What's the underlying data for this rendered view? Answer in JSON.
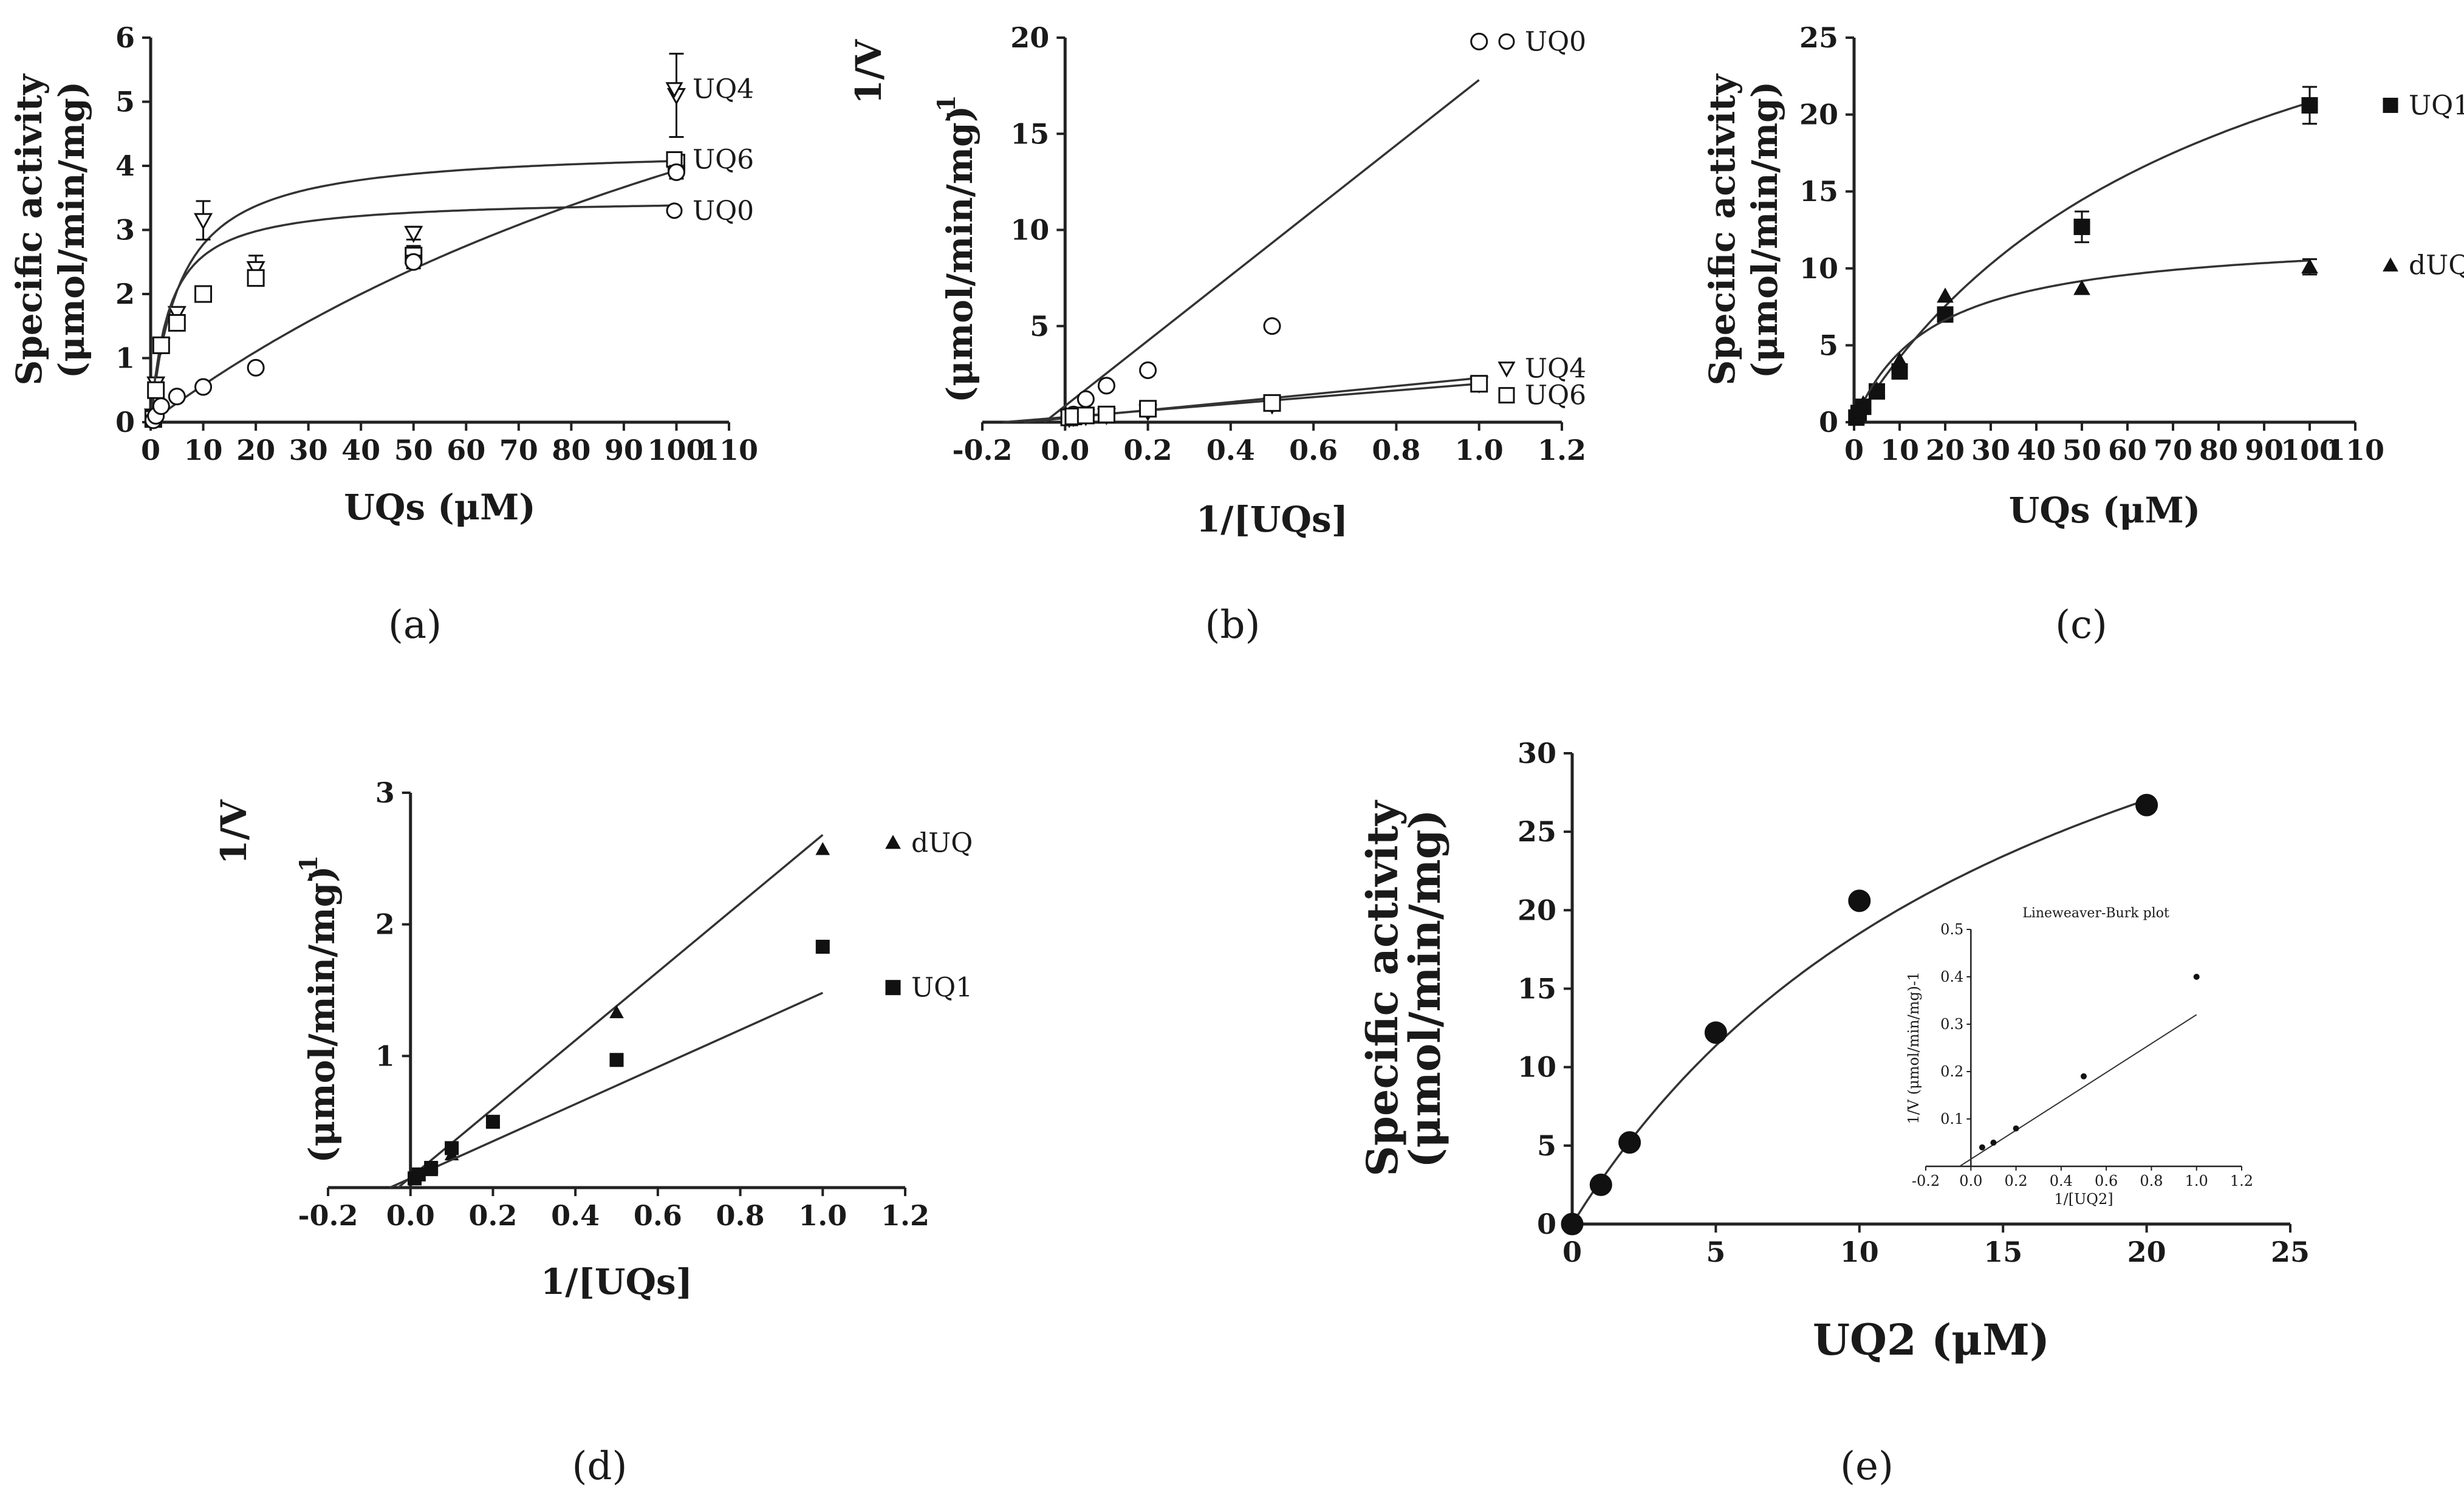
{
  "chart_data": [
    {
      "id": "a",
      "type": "scatter",
      "panel_label": "(a)",
      "xlabel": "UQs (μM)",
      "ylabel": "Specific activity (μmol/min/mg)",
      "ylabel_lines": [
        "Specific activity",
        "(μmol/min/mg)"
      ],
      "xlim": [
        0,
        110
      ],
      "ylim": [
        0,
        6
      ],
      "xticks": [
        0,
        10,
        20,
        30,
        40,
        50,
        60,
        70,
        80,
        90,
        100,
        110
      ],
      "yticks": [
        0,
        1,
        2,
        3,
        4,
        5,
        6
      ],
      "series": [
        {
          "name": "UQ4",
          "label": "UQ4",
          "marker": "triangle-down-open",
          "x": [
            0.5,
            1,
            2,
            5,
            10,
            20,
            50,
            100
          ],
          "y": [
            0.1,
            0.6,
            1.2,
            1.7,
            3.15,
            2.4,
            2.95,
            5.1
          ],
          "err": [
            0,
            0,
            0,
            0,
            0.3,
            0.2,
            0.1,
            0.65
          ],
          "fit": {
            "kind": "mm",
            "vmax": 4.3,
            "km": 5.5
          }
        },
        {
          "name": "UQ6",
          "label": "UQ6",
          "marker": "square-open",
          "x": [
            0.5,
            1,
            2,
            5,
            10,
            20,
            50,
            100
          ],
          "y": [
            0.05,
            0.5,
            1.2,
            1.55,
            2.0,
            2.25,
            2.6,
            4.05
          ],
          "err": [
            0,
            0,
            0,
            0,
            0,
            0.1,
            0.15,
            0.12
          ],
          "fit": {
            "kind": "mm",
            "vmax": 3.5,
            "km": 3.5
          }
        },
        {
          "name": "UQ0",
          "label": "UQ0",
          "marker": "circle-open",
          "x": [
            0.5,
            1,
            2,
            5,
            10,
            20,
            50,
            100
          ],
          "y": [
            0.03,
            0.1,
            0.25,
            0.4,
            0.55,
            0.85,
            2.5,
            3.9
          ],
          "err": [
            0,
            0,
            0,
            0,
            0,
            0,
            0.1,
            0.1
          ],
          "fit": {
            "kind": "mm",
            "vmax": 11,
            "km": 180
          }
        }
      ]
    },
    {
      "id": "b",
      "type": "scatter",
      "panel_label": "(b)",
      "xlabel": "1/[UQs]",
      "ylabel": "1/V (μmol/min/mg)-1",
      "ylabel_lines": [
        "1/V",
        "(μmol/min/mg)",
        "-1"
      ],
      "xlim": [
        -0.2,
        1.2
      ],
      "ylim": [
        0,
        20
      ],
      "xticks": [
        -0.2,
        0.0,
        0.2,
        0.4,
        0.6,
        0.8,
        1.0,
        1.2
      ],
      "yticks": [
        5,
        10,
        15,
        20
      ],
      "series": [
        {
          "name": "UQ0",
          "label": "UQ0",
          "marker": "circle-open",
          "x": [
            0.01,
            0.02,
            0.05,
            0.1,
            0.2,
            0.5,
            1.0
          ],
          "y": [
            0.26,
            0.4,
            1.2,
            1.9,
            2.7,
            5.0,
            19.8
          ],
          "fit": {
            "kind": "line",
            "slope": 17.0,
            "intercept": 0.8,
            "x0": -0.05,
            "x1": 1.0
          }
        },
        {
          "name": "UQ4",
          "label": "UQ4",
          "marker": "triangle-down-open",
          "x": [
            0.01,
            0.02,
            0.05,
            0.1,
            0.2,
            0.5,
            1.0
          ],
          "y": [
            0.2,
            0.25,
            0.3,
            0.35,
            0.55,
            0.9,
            2.0
          ],
          "fit": {
            "kind": "line",
            "slope": 2.1,
            "intercept": 0.2,
            "x0": -0.1,
            "x1": 1.0
          }
        },
        {
          "name": "UQ6",
          "label": "UQ6",
          "marker": "square-open",
          "x": [
            0.01,
            0.02,
            0.05,
            0.1,
            0.2,
            0.5,
            1.0
          ],
          "y": [
            0.25,
            0.3,
            0.35,
            0.4,
            0.7,
            1.0,
            2.0
          ],
          "fit": {
            "kind": "line",
            "slope": 1.75,
            "intercept": 0.25,
            "x0": -0.15,
            "x1": 1.0
          }
        }
      ]
    },
    {
      "id": "c",
      "type": "scatter",
      "panel_label": "(c)",
      "xlabel": "UQs (μM)",
      "ylabel": "Specific activity (μmol/min/mg)",
      "ylabel_lines": [
        "Specific activity",
        "(μmol/min/mg)"
      ],
      "xlim": [
        0,
        110
      ],
      "ylim": [
        0,
        25
      ],
      "xticks": [
        0,
        10,
        20,
        30,
        40,
        50,
        60,
        70,
        80,
        90,
        100,
        110
      ],
      "yticks": [
        0,
        5,
        10,
        15,
        20,
        25
      ],
      "series": [
        {
          "name": "UQ1",
          "label": "UQ1",
          "marker": "square-filled",
          "x": [
            0.5,
            1,
            2,
            5,
            10,
            20,
            50,
            100
          ],
          "y": [
            0.3,
            0.6,
            1.0,
            2.0,
            3.3,
            7.0,
            12.7,
            20.6
          ],
          "err": [
            0,
            0,
            0,
            0,
            0.3,
            0.4,
            1.0,
            1.2
          ],
          "fit": {
            "kind": "mm",
            "vmax": 37,
            "km": 78
          }
        },
        {
          "name": "dUQ",
          "label": "dUQ",
          "marker": "triangle-up-filled",
          "x": [
            0.5,
            1,
            2,
            5,
            10,
            20,
            50,
            100
          ],
          "y": [
            0.4,
            0.7,
            1.2,
            2.1,
            4.0,
            8.2,
            8.7,
            10.1
          ],
          "err": [
            0,
            0,
            0,
            0,
            0,
            0,
            0,
            0.5
          ],
          "fit": {
            "kind": "mm",
            "vmax": 12.3,
            "km": 17
          }
        }
      ]
    },
    {
      "id": "d",
      "type": "scatter",
      "panel_label": "(d)",
      "xlabel": "1/[UQs]",
      "ylabel": "1/V (μmol/min/mg)-1",
      "ylabel_lines": [
        "1/V",
        "(μmol/min/mg)",
        "-1"
      ],
      "xlim": [
        -0.2,
        1.2
      ],
      "ylim": [
        0,
        3
      ],
      "xticks": [
        -0.2,
        0.0,
        0.2,
        0.4,
        0.6,
        0.8,
        1.0,
        1.2
      ],
      "yticks": [
        1,
        2,
        3
      ],
      "series": [
        {
          "name": "dUQ",
          "label": "dUQ",
          "marker": "triangle-up-filled",
          "x": [
            0.01,
            0.02,
            0.05,
            0.1,
            0.2,
            0.5,
            1.0
          ],
          "y": [
            0.08,
            0.1,
            0.13,
            0.25,
            0.5,
            1.33,
            2.57
          ],
          "fit": {
            "kind": "line",
            "slope": 2.7,
            "intercept": -0.02,
            "x0": -0.03,
            "x1": 1.0
          }
        },
        {
          "name": "UQ1",
          "label": "UQ1",
          "marker": "square-filled",
          "x": [
            0.01,
            0.02,
            0.05,
            0.1,
            0.2,
            0.5,
            1.0
          ],
          "y": [
            0.07,
            0.1,
            0.15,
            0.3,
            0.5,
            0.97,
            1.83
          ],
          "fit": {
            "kind": "line",
            "slope": 1.55,
            "intercept": -0.07,
            "x0": -0.05,
            "x1": 1.0
          }
        }
      ]
    },
    {
      "id": "e",
      "type": "scatter",
      "panel_label": "(e)",
      "xlabel": "UQ2 (μM)",
      "ylabel": "Specific activity (μmol/min/mg)",
      "ylabel_lines": [
        "Specific activity",
        "(μmol/min/mg)"
      ],
      "xlim": [
        0,
        25
      ],
      "ylim": [
        0,
        30
      ],
      "xticks": [
        0,
        5,
        10,
        15,
        20,
        25
      ],
      "yticks": [
        0,
        5,
        10,
        15,
        20,
        25,
        30
      ],
      "series": [
        {
          "name": "UQ2",
          "marker": "circle-filled",
          "x": [
            0,
            1,
            2,
            5,
            10,
            20
          ],
          "y": [
            0,
            2.5,
            5.2,
            12.2,
            20.6,
            26.7
          ],
          "fit": {
            "kind": "mm",
            "vmax": 50,
            "km": 17
          }
        }
      ],
      "inset": {
        "title": "Lineweaver-Burk plot",
        "xlabel": "1/[UQ2]",
        "ylabel": "1/V (μmol/min/mg)-1",
        "xlim": [
          -0.2,
          1.2
        ],
        "ylim": [
          0,
          0.5
        ],
        "xticks": [
          -0.2,
          0.0,
          0.2,
          0.4,
          0.6,
          0.8,
          1.0,
          1.2
        ],
        "yticks": [
          0.1,
          0.2,
          0.3,
          0.4,
          0.5
        ],
        "x": [
          0.05,
          0.1,
          0.2,
          0.5,
          1.0
        ],
        "y": [
          0.04,
          0.05,
          0.08,
          0.19,
          0.4
        ],
        "fit": {
          "slope": 0.35,
          "intercept": -0.03,
          "x0": -0.05,
          "x1": 1.0
        }
      }
    }
  ]
}
